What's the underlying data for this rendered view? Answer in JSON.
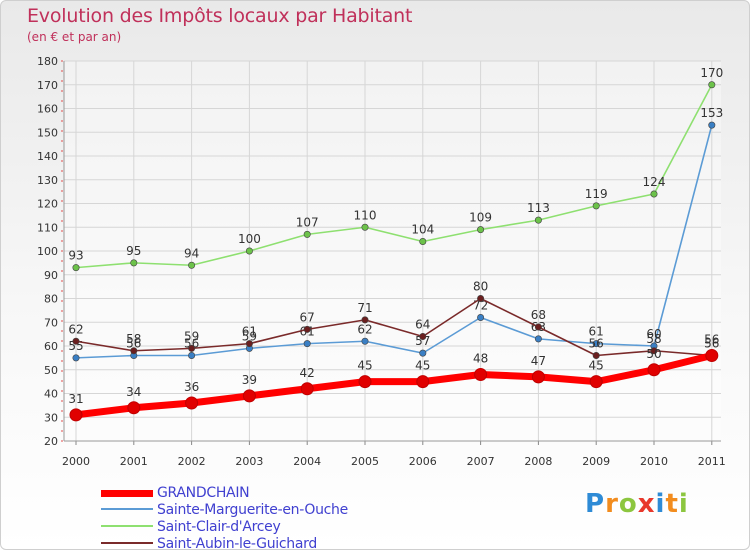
{
  "title": "Evolution des Impôts locaux par Habitant",
  "subtitle": "(en € et par an)",
  "logo": {
    "letters": [
      "P",
      "r",
      "o",
      "x",
      "i",
      "t",
      "i"
    ],
    "colors": [
      "#2e8bd6",
      "#f28c1e",
      "#8cc63f",
      "#e8382c",
      "#2e8bd6",
      "#f28c1e",
      "#8cc63f"
    ]
  },
  "chart_data": {
    "type": "line",
    "title": "Evolution des Impôts locaux par Habitant",
    "subtitle": "(en € et par an)",
    "xlabel": "",
    "ylabel": "",
    "ylim": [
      20,
      180
    ],
    "yticks": [
      20,
      30,
      40,
      50,
      60,
      70,
      80,
      90,
      100,
      110,
      120,
      130,
      140,
      150,
      160,
      170,
      180
    ],
    "x": [
      "2000",
      "2001",
      "2002",
      "2003",
      "2004",
      "2005",
      "2006",
      "2007",
      "2008",
      "2009",
      "2010",
      "2011"
    ],
    "grid": true,
    "series": [
      {
        "name": "Sainte-Marguerite-en-Ouche",
        "color": "#5b9bd5",
        "marker": "#3a7fc4",
        "values": [
          55,
          56,
          56,
          59,
          61,
          62,
          57,
          72,
          63,
          61,
          60,
          153
        ],
        "labels": [
          "55",
          "56",
          "56",
          "59",
          "61",
          "62",
          "57",
          "72",
          "63",
          "61",
          "60",
          "153"
        ]
      },
      {
        "name": "Saint-Clair-d'Arcey",
        "color": "#8ee070",
        "marker": "#6cc24a",
        "values": [
          93,
          95,
          94,
          100,
          107,
          110,
          104,
          109,
          113,
          119,
          124,
          170
        ],
        "labels": [
          "93",
          "95",
          "94",
          "100",
          "107",
          "110",
          "104",
          "109",
          "113",
          "119",
          "124",
          "170"
        ]
      },
      {
        "name": "Saint-Aubin-le-Guichard",
        "color": "#7a2a2a",
        "marker": "#6a1f1f",
        "values": [
          62,
          58,
          59,
          61,
          67,
          71,
          64,
          80,
          68,
          56,
          58,
          56
        ],
        "labels": [
          "62",
          "58",
          "59",
          "61",
          "67",
          "71",
          "64",
          "80",
          "68",
          "56",
          "58",
          "56"
        ]
      },
      {
        "name": "GRANDCHAIN",
        "color": "#ff0000",
        "marker": "#e00000",
        "values": [
          31,
          34,
          36,
          39,
          42,
          45,
          45,
          48,
          47,
          45,
          50,
          56
        ],
        "labels": [
          "31",
          "34",
          "36",
          "39",
          "42",
          "45",
          "45",
          "48",
          "47",
          "45",
          "50",
          "56"
        ]
      }
    ]
  },
  "legend": [
    {
      "label": "GRANDCHAIN",
      "color": "#ff0000"
    },
    {
      "label": "Sainte-Marguerite-en-Ouche",
      "color": "#5b9bd5"
    },
    {
      "label": "Saint-Clair-d'Arcey",
      "color": "#8ee070"
    },
    {
      "label": "Saint-Aubin-le-Guichard",
      "color": "#7a2a2a"
    }
  ]
}
